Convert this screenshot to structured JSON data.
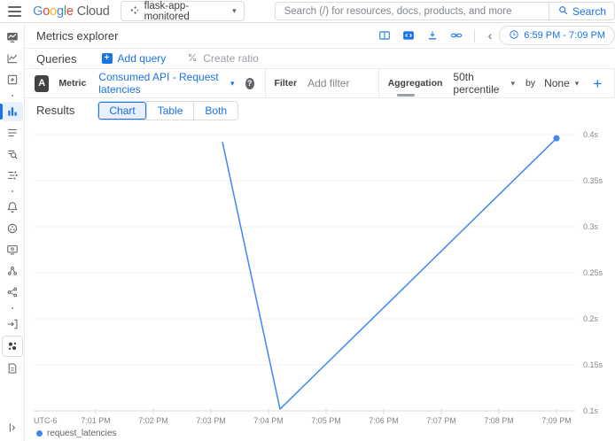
{
  "theme": {
    "accent": "#1a73e8",
    "line_color": "#4285f4",
    "brand_blue": "#4285f4",
    "brand_red": "#ea4335",
    "brand_yellow": "#fbbc05",
    "brand_green": "#34a853",
    "active_bg": "#e8f0fe"
  },
  "icons": {
    "caret_down": "▾",
    "chevron_left": "‹",
    "plus": "+",
    "help": "?"
  },
  "header": {
    "logo": {
      "letters": [
        {
          "ch": "G",
          "color": "#4285f4"
        },
        {
          "ch": "o",
          "color": "#ea4335"
        },
        {
          "ch": "o",
          "color": "#fbbc05"
        },
        {
          "ch": "g",
          "color": "#4285f4"
        },
        {
          "ch": "l",
          "color": "#34a853"
        },
        {
          "ch": "e",
          "color": "#ea4335"
        }
      ],
      "suffix": "Cloud"
    },
    "project_selector": {
      "label": "flask-app-monitored"
    },
    "search": {
      "placeholder": "Search (/) for resources, docs, products, and more",
      "button": "Search"
    }
  },
  "sidebar": {
    "items": [
      {
        "id": "monitoring-overview",
        "icon": "overview"
      },
      {
        "id": "dashboards",
        "icon": "line-chart"
      },
      {
        "id": "integrations",
        "icon": "grid-plus"
      },
      {
        "id": "divider-1",
        "icon": "dot",
        "type": "dot"
      },
      {
        "id": "metrics-explorer",
        "icon": "bar-chart",
        "active": true
      },
      {
        "id": "logs",
        "icon": "list"
      },
      {
        "id": "log-analytics",
        "icon": "search-list"
      },
      {
        "id": "trace",
        "icon": "trace"
      },
      {
        "id": "divider-2",
        "icon": "dot",
        "type": "dot"
      },
      {
        "id": "alerting",
        "icon": "bell"
      },
      {
        "id": "uptime-checks",
        "icon": "circle-dots"
      },
      {
        "id": "screen-share",
        "icon": "screen"
      },
      {
        "id": "services",
        "icon": "cluster"
      },
      {
        "id": "network",
        "icon": "share"
      },
      {
        "id": "divider-3",
        "icon": "dot",
        "type": "dot"
      },
      {
        "id": "migrate",
        "icon": "arrow-in"
      },
      {
        "id": "pinned-product",
        "icon": "dots-product",
        "boxed": true
      },
      {
        "id": "documentation",
        "icon": "doc-edit"
      },
      {
        "id": "collapse",
        "icon": "expand",
        "last": true
      }
    ]
  },
  "page": {
    "title": "Metrics explorer"
  },
  "toolbar": {
    "time_range": "6:59 PM - 7:09 PM"
  },
  "queries": {
    "label": "Queries",
    "add_query": "Add query",
    "create_ratio": "Create ratio"
  },
  "query_builder": {
    "query_letter": "A",
    "metric_label": "Metric",
    "metric_value": "Consumed API - Request latencies",
    "filter_label": "Filter",
    "filter_placeholder": "Add filter",
    "aggregation_label": "Aggregation",
    "aggregation_value": "50th percentile",
    "by_label": "by",
    "group_by_value": "None"
  },
  "results": {
    "label": "Results",
    "tabs": [
      {
        "label": "Chart",
        "active": true
      },
      {
        "label": "Table",
        "active": false
      },
      {
        "label": "Both",
        "active": false
      }
    ]
  },
  "chart_data": {
    "type": "line",
    "title": "",
    "xlabel": "",
    "ylabel": "",
    "grid": true,
    "legend_position": "bottom-left",
    "x_axis_note": "UTC-6",
    "y_range_s": [
      0.1,
      0.4
    ],
    "y_ticks": [
      {
        "v": 0.4,
        "label": "0.4s"
      },
      {
        "v": 0.35,
        "label": "0.35s"
      },
      {
        "v": 0.3,
        "label": "0.3s"
      },
      {
        "v": 0.25,
        "label": "0.25s"
      },
      {
        "v": 0.2,
        "label": "0.2s"
      },
      {
        "v": 0.15,
        "label": "0.15s"
      },
      {
        "v": 0.1,
        "label": "0.1s"
      }
    ],
    "x_ticks": [
      {
        "m": 1,
        "label": "7:01 PM"
      },
      {
        "m": 2,
        "label": "7:02 PM"
      },
      {
        "m": 3,
        "label": "7:03 PM"
      },
      {
        "m": 4,
        "label": "7:04 PM"
      },
      {
        "m": 5,
        "label": "7:05 PM"
      },
      {
        "m": 6,
        "label": "7:06 PM"
      },
      {
        "m": 7,
        "label": "7:07 PM"
      },
      {
        "m": 8,
        "label": "7:08 PM"
      },
      {
        "m": 9,
        "label": "7:09 PM"
      }
    ],
    "series": [
      {
        "name": "request_latencies",
        "color": "#4285f4",
        "end_marker": true,
        "points": [
          {
            "time": "7:03 PM",
            "m": 3.2,
            "v": 0.392
          },
          {
            "time": "7:04 PM",
            "m": 4.2,
            "v": 0.102
          },
          {
            "time": "7:09 PM",
            "m": 9.0,
            "v": 0.396
          }
        ]
      }
    ],
    "legend": [
      {
        "label": "request_latencies",
        "color": "#4285f4"
      }
    ]
  }
}
